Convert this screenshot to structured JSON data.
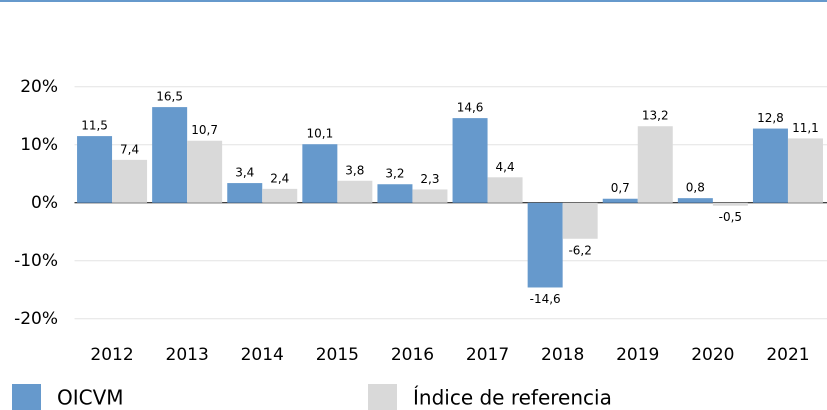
{
  "chart_data": {
    "type": "bar",
    "categories": [
      "2012",
      "2013",
      "2014",
      "2015",
      "2016",
      "2017",
      "2018",
      "2019",
      "2020",
      "2021"
    ],
    "series": [
      {
        "name": "OICVM",
        "color": "#6699cc",
        "values": [
          11.5,
          16.5,
          3.4,
          10.1,
          3.2,
          14.6,
          -14.6,
          0.7,
          0.8,
          12.8
        ],
        "value_labels": [
          "11,5",
          "16,5",
          "3,4",
          "10,1",
          "3,2",
          "14,6",
          "-14,6",
          "0,7",
          "0,8",
          "12,8"
        ]
      },
      {
        "name": "Índice de referencia",
        "color": "#d9d9d9",
        "values": [
          7.4,
          10.7,
          2.4,
          3.8,
          2.3,
          4.4,
          -6.2,
          13.2,
          -0.5,
          11.1
        ],
        "value_labels": [
          "7,4",
          "10,7",
          "2,4",
          "3,8",
          "2,3",
          "4,4",
          "-6,2",
          "13,2",
          "-0,5",
          "11,1"
        ]
      }
    ],
    "ylim": [
      -24,
      26
    ],
    "yticks": [
      {
        "value": 20,
        "label": "20%"
      },
      {
        "value": 10,
        "label": "10%"
      },
      {
        "value": 0,
        "label": "0%"
      },
      {
        "value": -10,
        "label": "-10%"
      },
      {
        "value": -20,
        "label": "-20%"
      }
    ],
    "grid": true
  }
}
